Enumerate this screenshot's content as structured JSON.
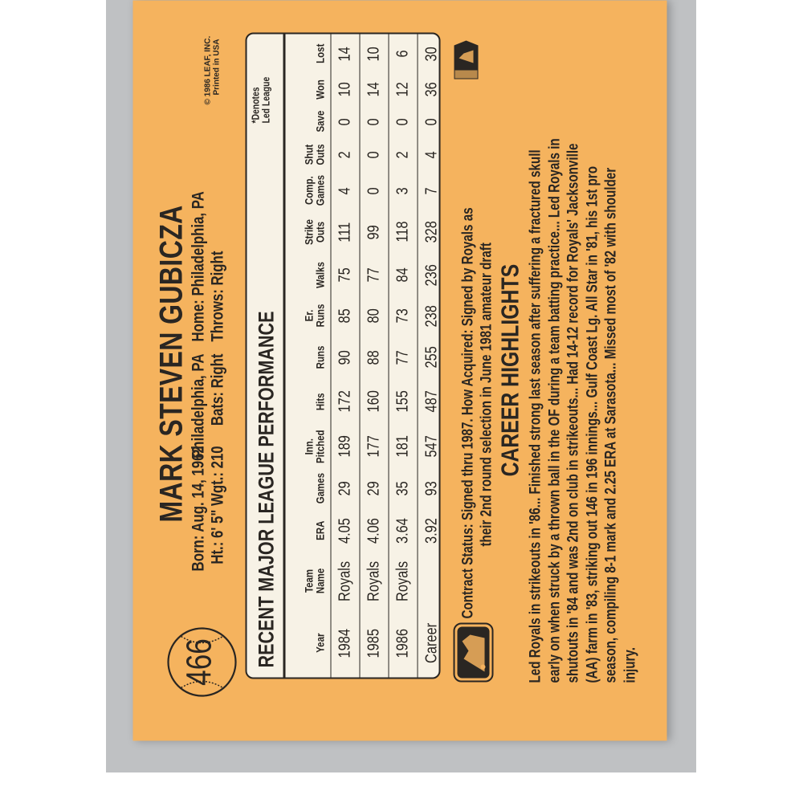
{
  "card": {
    "number": "466",
    "player_name": "MARK STEVEN GUBICZA",
    "born": "Born: Aug. 14, 1962",
    "birthplace": "Philadelphia, PA",
    "home": "Home: Philadelphia, PA",
    "height_weight": "Ht.: 6' 5\"  Wgt.: 210",
    "bats": "Bats: Right",
    "throws": "Throws: Right",
    "copyright_line1": "© 1986 LEAF, INC.",
    "copyright_line2": "Printed in USA",
    "card_color": "#f5b35e"
  },
  "stats": {
    "title": "RECENT MAJOR LEAGUE PERFORMANCE",
    "note_line1": "*Denotes",
    "note_line2": "Led League",
    "columns": [
      "Year",
      "Team\nName",
      "ERA",
      "Games",
      "Inn.\nPitched",
      "Hits",
      "Runs",
      "Er.\nRuns",
      "Walks",
      "Strike\nOuts",
      "Comp.\nGames",
      "Shut\nOuts",
      "Save",
      "Won",
      "Lost"
    ],
    "rows": [
      [
        "1984",
        "Royals",
        "4.05",
        "29",
        "189",
        "172",
        "90",
        "85",
        "75",
        "111",
        "4",
        "2",
        "0",
        "10",
        "14"
      ],
      [
        "1985",
        "Royals",
        "4.06",
        "29",
        "177",
        "160",
        "88",
        "80",
        "77",
        "99",
        "0",
        "0",
        "0",
        "14",
        "10"
      ],
      [
        "1986",
        "Royals",
        "3.64",
        "35",
        "181",
        "155",
        "77",
        "73",
        "84",
        "118",
        "3",
        "2",
        "0",
        "12",
        "6"
      ],
      [
        "Career",
        "",
        "3.92",
        "93",
        "547",
        "487",
        "255",
        "238",
        "236",
        "328",
        "7",
        "4",
        "0",
        "36",
        "30"
      ]
    ]
  },
  "contract": {
    "line1": "Contract Status: Signed thru 1987. How Acquired: Signed by Royals as",
    "line2": "their 2nd round selection in June 1981 amateur draft"
  },
  "highlights": {
    "title": "CAREER HIGHLIGHTS",
    "lines": [
      "Led Royals in strikeouts in '86... Finished strong last season after suffering a fractured skull",
      "early on when struck by a thrown ball in the OF during a team batting practice... Led Royals in",
      "shutouts in '84 and was 2nd on club in strikeouts... Had 14-12 record for Royals' Jacksonville",
      "(AA) farm in '83, striking out 146 in 196 innings... Gulf Coast Lg. All Star in '81, his 1st pro",
      "season, compiling 8-1 mark and 2.25 ERA at Sarasota... Missed most of '82 with shoulder",
      "injury."
    ]
  },
  "logos": {
    "mlb_small": "MLB",
    "mlb_large": "MLB"
  }
}
